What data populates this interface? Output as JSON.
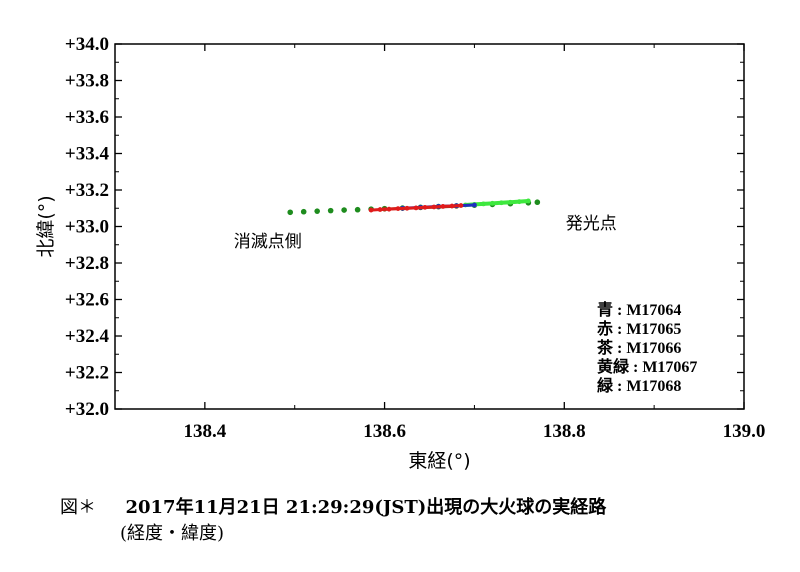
{
  "chart_data": {
    "type": "scatter",
    "xlabel": "東経(°)",
    "ylabel": "北緯(°)",
    "xlim": [
      138.3,
      139.0
    ],
    "ylim": [
      32.0,
      34.0
    ],
    "x_ticks": [
      138.4,
      138.6,
      138.8,
      139.0
    ],
    "x_tick_labels": [
      "138.4",
      "138.6",
      "138.8",
      "139.0"
    ],
    "y_ticks": [
      32.0,
      32.2,
      32.4,
      32.6,
      32.8,
      33.0,
      33.2,
      33.4,
      33.6,
      33.8,
      34.0
    ],
    "y_tick_labels": [
      "+32.0",
      "+32.2",
      "+32.4",
      "+32.6",
      "+32.8",
      "+33.0",
      "+33.2",
      "+33.4",
      "+33.6",
      "+33.8",
      "+34.0"
    ],
    "grid": false,
    "annotations": [
      {
        "text": "消滅点側",
        "x": 138.47,
        "y": 32.92
      },
      {
        "text": "発光点",
        "x": 138.83,
        "y": 33.02
      }
    ],
    "legend": {
      "placement": "bottom-right",
      "entries": [
        "青 : M17064",
        "赤 : M17065",
        "茶 : M17066",
        "黄緑 : M17067",
        "緑 : M17068"
      ]
    },
    "series": [
      {
        "name": "青 : M17064",
        "color": "#1f2fbf",
        "x": [
          138.62,
          138.64,
          138.66,
          138.68,
          138.7
        ],
        "y": [
          33.1,
          33.105,
          33.11,
          33.114,
          33.118
        ]
      },
      {
        "name": "赤 : M17065",
        "color": "#e01b1b",
        "x": [
          138.585,
          138.595,
          138.605,
          138.615,
          138.625,
          138.635,
          138.645,
          138.655,
          138.665,
          138.675,
          138.685
        ],
        "y": [
          33.09,
          33.093,
          33.095,
          33.098,
          33.1,
          33.102,
          33.105,
          33.107,
          33.11,
          33.112,
          33.115
        ]
      },
      {
        "name": "茶 : M17066",
        "color": "#8b4513",
        "x": [
          138.6,
          138.62,
          138.64,
          138.66,
          138.68
        ],
        "y": [
          33.095,
          33.099,
          33.103,
          33.107,
          33.111
        ]
      },
      {
        "name": "黄緑 : M17067",
        "color": "#3ee83e",
        "x": [
          138.69,
          138.7,
          138.71,
          138.72,
          138.73,
          138.74,
          138.75,
          138.76
        ],
        "y": [
          33.118,
          33.121,
          33.124,
          33.127,
          33.13,
          33.133,
          33.136,
          33.14
        ]
      },
      {
        "name": "緑 : M17068",
        "color": "#1e8c1e",
        "x": [
          138.495,
          138.51,
          138.525,
          138.54,
          138.555,
          138.57,
          138.585,
          138.6,
          138.62,
          138.64,
          138.66,
          138.68,
          138.7,
          138.72,
          138.74,
          138.76,
          138.77
        ],
        "y": [
          33.078,
          33.081,
          33.084,
          33.087,
          33.09,
          33.092,
          33.095,
          33.098,
          33.101,
          33.105,
          33.109,
          33.113,
          33.117,
          33.121,
          33.125,
          33.13,
          33.133
        ]
      }
    ]
  },
  "caption": {
    "label": "図＊",
    "title": "2017年11月21日 21:29:29(JST)出現の大火球の実経路",
    "subtitle": "(経度・緯度)"
  }
}
